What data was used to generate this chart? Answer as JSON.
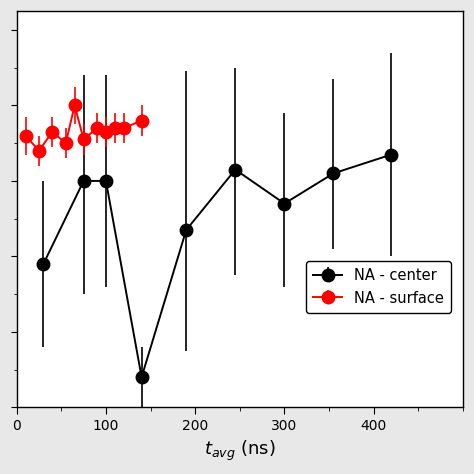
{
  "black_x": [
    30,
    75,
    100,
    140,
    190,
    245,
    300,
    355,
    420
  ],
  "black_y": [
    0.38,
    0.6,
    0.6,
    0.08,
    0.47,
    0.63,
    0.54,
    0.62,
    0.67
  ],
  "black_yerr_lo": [
    0.22,
    0.3,
    0.28,
    0.22,
    0.32,
    0.28,
    0.22,
    0.2,
    0.27
  ],
  "black_yerr_hi": [
    0.22,
    0.28,
    0.28,
    0.08,
    0.42,
    0.27,
    0.24,
    0.25,
    0.27
  ],
  "red_x": [
    10,
    25,
    40,
    55,
    65,
    75,
    90,
    100,
    110,
    120,
    140
  ],
  "red_y": [
    0.72,
    0.68,
    0.73,
    0.7,
    0.8,
    0.71,
    0.74,
    0.73,
    0.74,
    0.74,
    0.76
  ],
  "red_yerr_lo": [
    0.05,
    0.04,
    0.04,
    0.04,
    0.05,
    0.04,
    0.04,
    0.04,
    0.04,
    0.04,
    0.04
  ],
  "red_yerr_hi": [
    0.05,
    0.04,
    0.04,
    0.04,
    0.05,
    0.04,
    0.04,
    0.04,
    0.04,
    0.04,
    0.04
  ],
  "xlim": [
    0,
    500
  ],
  "ylim_lo": 0.0,
  "ylim_hi": 1.05,
  "xlabel": "$t_{avg}$ (ns)",
  "xticks": [
    0,
    100,
    200,
    300,
    400
  ],
  "black_label": "NA - center",
  "red_label": "NA - surface",
  "marker_size": 9,
  "line_width": 1.4,
  "cap_size": 0,
  "elinewidth": 1.2,
  "fig_facecolor": "#e8e8e8",
  "ax_facecolor": "#ffffff"
}
